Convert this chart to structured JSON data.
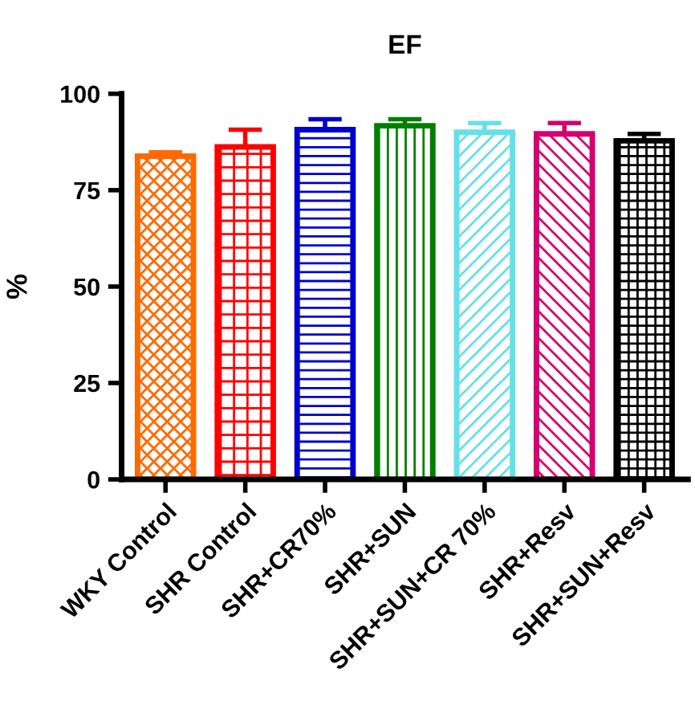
{
  "chart_data": {
    "type": "bar",
    "title": "EF",
    "ylabel": "%",
    "categories": [
      "WKY Control",
      "SHR Control",
      "SHR+CR70%",
      "SHR+SUN",
      "SHR+SUN+CR 70%",
      "SHR+Resv",
      "SHR+SUN+Resv"
    ],
    "values": [
      83.8,
      86.2,
      90.7,
      91.7,
      90.0,
      89.6,
      87.8
    ],
    "errors": [
      [
        83.8,
        84.8
      ],
      [
        86.2,
        90.7
      ],
      [
        90.7,
        93.4
      ],
      [
        91.7,
        93.4
      ],
      [
        90.0,
        92.4
      ],
      [
        89.6,
        92.4
      ],
      [
        87.8,
        89.6
      ]
    ],
    "colors": [
      "#ff6a00",
      "#ff0000",
      "#0000cc",
      "#008000",
      "#66e0e8",
      "#d4006e",
      "#000000"
    ],
    "ylim": [
      0,
      100
    ],
    "yticks": [
      0,
      25,
      50,
      75,
      100
    ],
    "grid": false,
    "legend": false
  }
}
